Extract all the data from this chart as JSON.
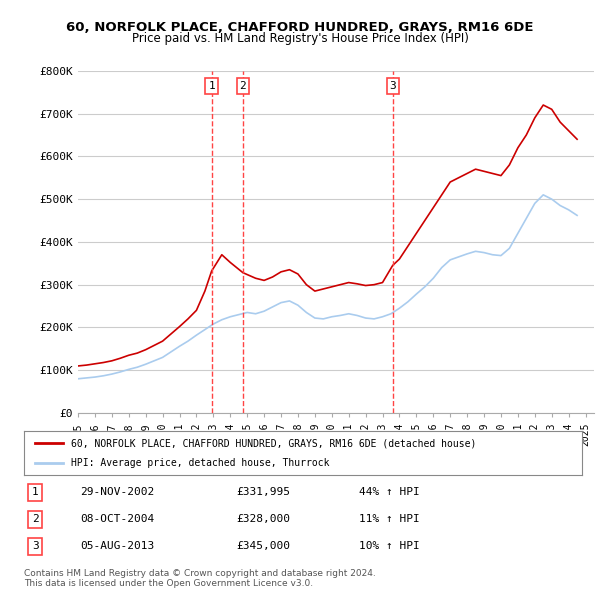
{
  "title": "60, NORFOLK PLACE, CHAFFORD HUNDRED, GRAYS, RM16 6DE",
  "subtitle": "Price paid vs. HM Land Registry's House Price Index (HPI)",
  "ylabel": "",
  "xlabel": "",
  "ylim": [
    0,
    800000
  ],
  "yticks": [
    0,
    100000,
    200000,
    300000,
    400000,
    500000,
    600000,
    700000,
    800000
  ],
  "ytick_labels": [
    "£0",
    "£100K",
    "£200K",
    "£300K",
    "£400K",
    "£500K",
    "£600K",
    "£700K",
    "£800K"
  ],
  "xlim_start": 1995.0,
  "xlim_end": 2025.5,
  "background_color": "#ffffff",
  "grid_color": "#cccccc",
  "red_color": "#cc0000",
  "blue_color": "#aaccee",
  "marker_line_color": "#ff4444",
  "transactions": [
    {
      "num": 1,
      "year_x": 2002.9,
      "date": "29-NOV-2002",
      "price": "£331,995",
      "pct": "44% ↑ HPI"
    },
    {
      "num": 2,
      "year_x": 2004.75,
      "date": "08-OCT-2004",
      "price": "£328,000",
      "pct": "11% ↑ HPI"
    },
    {
      "num": 3,
      "year_x": 2013.6,
      "date": "05-AUG-2013",
      "price": "£345,000",
      "pct": "10% ↑ HPI"
    }
  ],
  "legend_line1": "60, NORFOLK PLACE, CHAFFORD HUNDRED, GRAYS, RM16 6DE (detached house)",
  "legend_line2": "HPI: Average price, detached house, Thurrock",
  "footnote1": "Contains HM Land Registry data © Crown copyright and database right 2024.",
  "footnote2": "This data is licensed under the Open Government Licence v3.0.",
  "red_line_data": {
    "years": [
      1995.0,
      1995.5,
      1996.0,
      1996.5,
      1997.0,
      1997.5,
      1998.0,
      1998.5,
      1999.0,
      1999.5,
      2000.0,
      2000.5,
      2001.0,
      2001.5,
      2002.0,
      2002.5,
      2002.9,
      2003.5,
      2004.0,
      2004.75,
      2005.5,
      2006.0,
      2006.5,
      2007.0,
      2007.5,
      2008.0,
      2008.5,
      2009.0,
      2009.5,
      2010.0,
      2010.5,
      2011.0,
      2011.5,
      2012.0,
      2012.5,
      2013.0,
      2013.6,
      2014.0,
      2014.5,
      2015.0,
      2015.5,
      2016.0,
      2016.5,
      2017.0,
      2017.5,
      2018.0,
      2018.5,
      2019.0,
      2019.5,
      2020.0,
      2020.5,
      2021.0,
      2021.5,
      2022.0,
      2022.5,
      2023.0,
      2023.5,
      2024.0,
      2024.5
    ],
    "values": [
      110000,
      112000,
      115000,
      118000,
      122000,
      128000,
      135000,
      140000,
      148000,
      158000,
      168000,
      185000,
      202000,
      220000,
      240000,
      285000,
      331995,
      370000,
      352000,
      328000,
      315000,
      310000,
      318000,
      330000,
      335000,
      325000,
      300000,
      285000,
      290000,
      295000,
      300000,
      305000,
      302000,
      298000,
      300000,
      305000,
      345000,
      360000,
      390000,
      420000,
      450000,
      480000,
      510000,
      540000,
      550000,
      560000,
      570000,
      565000,
      560000,
      555000,
      580000,
      620000,
      650000,
      690000,
      720000,
      710000,
      680000,
      660000,
      640000
    ]
  },
  "blue_line_data": {
    "years": [
      1995.0,
      1995.5,
      1996.0,
      1996.5,
      1997.0,
      1997.5,
      1998.0,
      1998.5,
      1999.0,
      1999.5,
      2000.0,
      2000.5,
      2001.0,
      2001.5,
      2002.0,
      2002.5,
      2003.0,
      2003.5,
      2004.0,
      2004.5,
      2005.0,
      2005.5,
      2006.0,
      2006.5,
      2007.0,
      2007.5,
      2008.0,
      2008.5,
      2009.0,
      2009.5,
      2010.0,
      2010.5,
      2011.0,
      2011.5,
      2012.0,
      2012.5,
      2013.0,
      2013.5,
      2014.0,
      2014.5,
      2015.0,
      2015.5,
      2016.0,
      2016.5,
      2017.0,
      2017.5,
      2018.0,
      2018.5,
      2019.0,
      2019.5,
      2020.0,
      2020.5,
      2021.0,
      2021.5,
      2022.0,
      2022.5,
      2023.0,
      2023.5,
      2024.0,
      2024.5
    ],
    "values": [
      80000,
      82000,
      84000,
      87000,
      91000,
      96000,
      102000,
      107000,
      114000,
      122000,
      130000,
      143000,
      156000,
      168000,
      182000,
      195000,
      208000,
      218000,
      225000,
      230000,
      235000,
      232000,
      238000,
      248000,
      258000,
      262000,
      252000,
      235000,
      222000,
      220000,
      225000,
      228000,
      232000,
      228000,
      222000,
      220000,
      225000,
      232000,
      245000,
      260000,
      278000,
      295000,
      315000,
      340000,
      358000,
      365000,
      372000,
      378000,
      375000,
      370000,
      368000,
      385000,
      420000,
      455000,
      490000,
      510000,
      500000,
      485000,
      475000,
      462000
    ]
  }
}
